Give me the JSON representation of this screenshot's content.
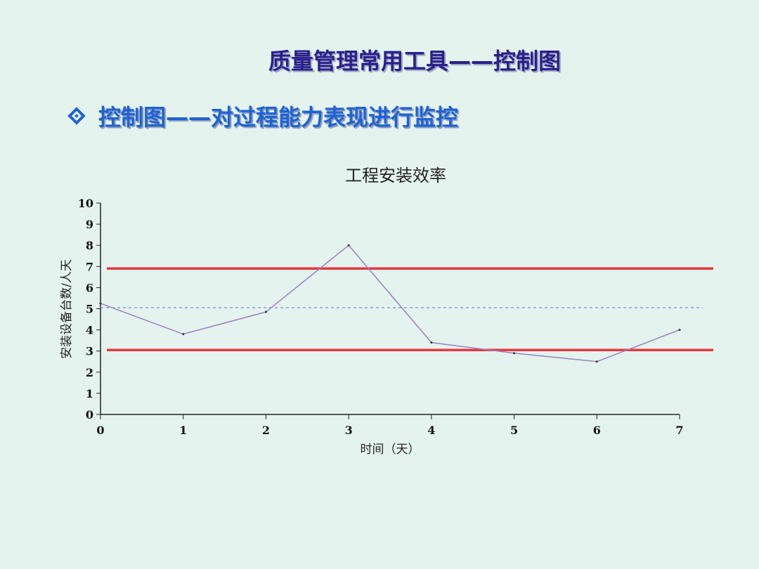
{
  "slide": {
    "title": "质量管理常用工具——控制图",
    "subtitle": "控制图——对过程能力表现进行监控",
    "bullet_icon": "diamond-bullet-icon"
  },
  "chart_data": {
    "type": "line",
    "title": "工程安装效率",
    "xlabel": "时间（天）",
    "ylabel": "安装设备台数/人天",
    "xlim": [
      0,
      7
    ],
    "ylim": [
      0,
      10
    ],
    "x_ticks": [
      "0",
      "1",
      "2",
      "3",
      "4",
      "5",
      "6",
      "7"
    ],
    "y_ticks": [
      "0",
      "1",
      "2",
      "3",
      "4",
      "5",
      "6",
      "7",
      "8",
      "9",
      "10"
    ],
    "grid": false,
    "x": [
      0,
      1,
      2,
      3,
      4,
      5,
      6,
      7
    ],
    "values": [
      5.25,
      3.8,
      4.85,
      8.0,
      3.4,
      2.9,
      2.5,
      4.0
    ],
    "reference_lines": [
      {
        "role": "upper control limit",
        "y": 6.9,
        "color": "#e8383d",
        "style": "solid"
      },
      {
        "role": "center line",
        "y": 5.05,
        "color": "#6a6ad8",
        "style": "dashed"
      },
      {
        "role": "lower control limit",
        "y": 3.05,
        "color": "#e8383d",
        "style": "solid"
      }
    ],
    "series_color": "#9b7fc4"
  }
}
